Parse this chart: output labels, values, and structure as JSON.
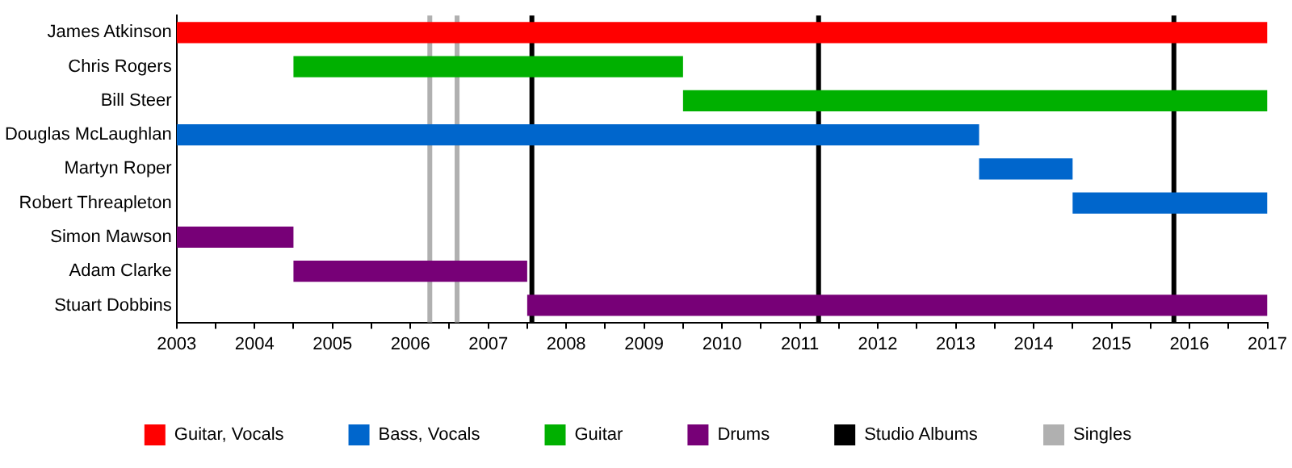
{
  "chart_data": {
    "type": "bar",
    "orientation": "horizontal",
    "categories": [
      "James Atkinson",
      "Chris Rogers",
      "Bill Steer",
      "Douglas McLaughlan",
      "Martyn Roper",
      "Robert Threapleton",
      "Simon Mawson",
      "Adam Clarke",
      "Stuart Dobbins"
    ],
    "series": [
      {
        "name": "Guitar, Vocals",
        "color": "#ff0000",
        "values": [
          14,
          null,
          null,
          null,
          null,
          null,
          null,
          null,
          null
        ],
        "base": [
          2003,
          null,
          null,
          null,
          null,
          null,
          null,
          null,
          null
        ]
      },
      {
        "name": "Bass, Vocals",
        "color": "#0066cc",
        "values": [
          null,
          null,
          null,
          10.3,
          1.2,
          2.5,
          null,
          null,
          null
        ],
        "base": [
          null,
          null,
          null,
          2003,
          2013.3,
          2014.5,
          null,
          null,
          null
        ]
      },
      {
        "name": "Guitar",
        "color": "#00b000",
        "values": [
          null,
          5,
          7.5,
          null,
          null,
          null,
          null,
          null,
          null
        ],
        "base": [
          null,
          2004.5,
          2009.5,
          null,
          null,
          null,
          null,
          null,
          null
        ]
      },
      {
        "name": "Drums",
        "color": "#770077",
        "values": [
          null,
          null,
          null,
          null,
          null,
          null,
          1.5,
          3,
          9.5
        ],
        "base": [
          null,
          null,
          null,
          null,
          null,
          null,
          2003,
          2004.5,
          2007.5
        ]
      }
    ],
    "ref_lines": [
      {
        "axis": "x",
        "value": 2007.56,
        "label": "Studio Albums",
        "color": "#000000"
      },
      {
        "axis": "x",
        "value": 2011.24,
        "color": "#000000"
      },
      {
        "axis": "x",
        "value": 2015.8,
        "color": "#000000"
      },
      {
        "axis": "x",
        "value": 2006.25,
        "label": "Singles",
        "color": "#b0b0b0"
      },
      {
        "axis": "x",
        "value": 2006.6,
        "color": "#b0b0b0"
      }
    ],
    "xlim": [
      2003,
      2017
    ],
    "xticks": [
      2003,
      {
        "value": 2003.5,
        "label": null
      },
      2004,
      {
        "value": 2004.5,
        "label": null
      },
      2005,
      {
        "value": 2005.5,
        "label": null
      },
      2006,
      {
        "value": 2006.5,
        "label": null
      },
      2007,
      {
        "value": 2007.5,
        "label": null
      },
      2008,
      {
        "value": 2008.5,
        "label": null
      },
      2009,
      {
        "value": 2009.5,
        "label": null
      },
      2010,
      {
        "value": 2010.5,
        "label": null
      },
      2011,
      {
        "value": 2011.5,
        "label": null
      },
      2012,
      {
        "value": 2012.5,
        "label": null
      },
      2013,
      {
        "value": 2013.5,
        "label": null
      },
      2014,
      {
        "value": 2014.5,
        "label": null
      },
      2015,
      {
        "value": 2015.5,
        "label": null
      },
      2016,
      {
        "value": 2016.5,
        "label": null
      },
      2017
    ],
    "grid": false,
    "legend": "bottom"
  }
}
